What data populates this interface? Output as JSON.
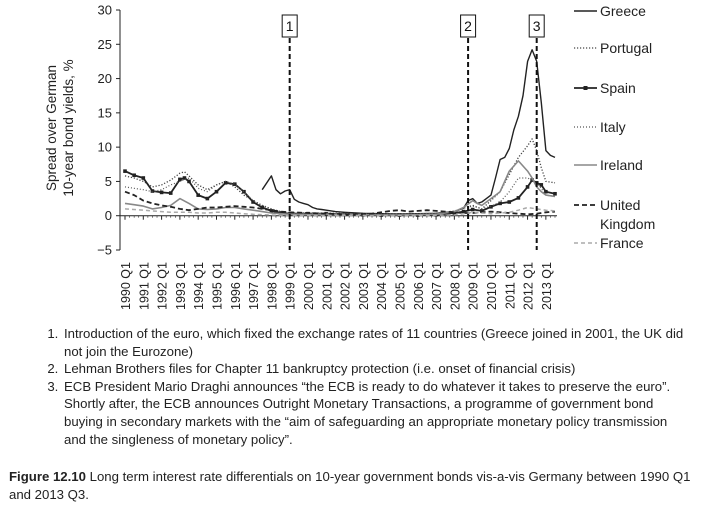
{
  "chart_data": {
    "type": "line",
    "ylabel": "Spread over German\n10-year bond yields, %",
    "ylim": [
      -5,
      30
    ],
    "yticks": [
      30,
      25,
      20,
      15,
      10,
      5,
      0,
      -5
    ],
    "ytick_labels": [
      "30",
      "25",
      "20",
      "15",
      "10",
      "5",
      "0",
      "−5"
    ],
    "xlim": [
      1990.0,
      2013.5
    ],
    "xtick_labels": [
      "1990 Q1",
      "1991 Q1",
      "1992 Q1",
      "1993 Q1",
      "1994 Q1",
      "1995 Q1",
      "1996 Q1",
      "1997 Q1",
      "1998 Q1",
      "1999 Q1",
      "2000 Q1",
      "2001 Q1",
      "2002 Q1",
      "2003 Q1",
      "2004 Q1",
      "2005 Q1",
      "2006 Q1",
      "2007 Q1",
      "2008 Q1",
      "2009 Q1",
      "2010 Q1",
      "2011 Q1",
      "2012 Q1",
      "2013 Q1"
    ],
    "grid": false,
    "legend_position": "right",
    "annotations": [
      {
        "label": "1",
        "x": 1999.0
      },
      {
        "label": "2",
        "x": 2008.75
      },
      {
        "label": "3",
        "x": 2012.5
      }
    ],
    "series": [
      {
        "name": "Greece",
        "color": "#222222",
        "dash": "",
        "width": 1.4,
        "marker": false,
        "x": [
          1997.5,
          1998.0,
          1998.25,
          1998.5,
          1998.75,
          1999.0,
          1999.25,
          1999.5,
          1999.75,
          2000.0,
          2000.25,
          2000.5,
          2000.75,
          2001.0,
          2001.5,
          2002.0,
          2003.0,
          2004.0,
          2005.0,
          2006.0,
          2007.0,
          2008.0,
          2008.5,
          2008.75,
          2009.0,
          2009.25,
          2009.5,
          2009.75,
          2010.0,
          2010.25,
          2010.5,
          2010.75,
          2011.0,
          2011.25,
          2011.5,
          2011.75,
          2012.0,
          2012.25,
          2012.5,
          2012.75,
          2013.0,
          2013.25,
          2013.5
        ],
        "y": [
          3.8,
          5.8,
          3.8,
          3.2,
          3.6,
          3.8,
          2.4,
          2.0,
          1.8,
          1.6,
          1.2,
          1.0,
          0.9,
          0.8,
          0.6,
          0.5,
          0.35,
          0.3,
          0.25,
          0.3,
          0.35,
          0.6,
          1.1,
          2.2,
          2.5,
          1.8,
          2.0,
          2.5,
          3.0,
          5.5,
          8.2,
          8.5,
          9.8,
          12.5,
          14.5,
          17.5,
          22.5,
          24.2,
          22.5,
          16.5,
          9.5,
          8.8,
          8.5
        ]
      },
      {
        "name": "Portugal",
        "color": "#444444",
        "dash": "1.2 1.8",
        "width": 1.3,
        "marker": false,
        "x": [
          1990.0,
          1990.5,
          1991.0,
          1991.5,
          1992.0,
          1992.5,
          1993.0,
          1993.25,
          1993.5,
          1994.0,
          1994.5,
          1995.0,
          1995.5,
          1996.0,
          1996.5,
          1997.0,
          1997.5,
          1998.0,
          1998.5,
          1999.0,
          2000.0,
          2001.0,
          2002.0,
          2003.0,
          2004.0,
          2005.0,
          2006.0,
          2007.0,
          2008.0,
          2008.5,
          2009.0,
          2009.5,
          2010.0,
          2010.5,
          2011.0,
          2011.5,
          2012.0,
          2012.25,
          2012.5,
          2012.75,
          2013.0,
          2013.5
        ],
        "y": [
          5.8,
          5.5,
          5.0,
          4.2,
          4.5,
          5.2,
          6.2,
          6.4,
          5.8,
          4.5,
          3.8,
          4.5,
          5.0,
          4.2,
          3.0,
          2.2,
          1.5,
          1.0,
          0.6,
          0.4,
          0.4,
          0.35,
          0.3,
          0.25,
          0.2,
          0.2,
          0.25,
          0.3,
          0.6,
          1.1,
          1.5,
          1.0,
          2.2,
          3.5,
          6.0,
          8.5,
          10.2,
          11.2,
          9.5,
          7.0,
          5.0,
          4.8
        ]
      },
      {
        "name": "Spain",
        "color": "#222222",
        "dash": "",
        "width": 1.8,
        "marker": true,
        "x": [
          1990.0,
          1990.5,
          1991.0,
          1991.5,
          1992.0,
          1992.5,
          1993.0,
          1993.25,
          1993.5,
          1994.0,
          1994.5,
          1995.0,
          1995.5,
          1996.0,
          1996.5,
          1997.0,
          1997.5,
          1998.0,
          1998.5,
          1999.0,
          2000.0,
          2001.0,
          2002.0,
          2003.0,
          2004.0,
          2005.0,
          2006.0,
          2007.0,
          2008.0,
          2008.5,
          2009.0,
          2009.5,
          2010.0,
          2010.5,
          2011.0,
          2011.5,
          2012.0,
          2012.25,
          2012.5,
          2012.75,
          2013.0,
          2013.5
        ],
        "y": [
          6.5,
          5.9,
          5.5,
          3.6,
          3.4,
          3.3,
          5.3,
          5.5,
          5.0,
          3.0,
          2.5,
          3.5,
          4.8,
          4.6,
          3.5,
          2.0,
          1.2,
          0.7,
          0.4,
          0.3,
          0.3,
          0.3,
          0.2,
          0.15,
          0.1,
          0.1,
          0.1,
          0.15,
          0.4,
          0.6,
          0.9,
          0.7,
          1.3,
          1.8,
          2.0,
          2.6,
          4.2,
          5.2,
          4.8,
          4.5,
          3.5,
          3.2
        ]
      },
      {
        "name": "Italy",
        "color": "#555555",
        "dash": "1 2",
        "width": 1.2,
        "marker": false,
        "x": [
          1990.0,
          1990.5,
          1991.0,
          1991.5,
          1992.0,
          1992.5,
          1993.0,
          1993.5,
          1994.0,
          1994.5,
          1995.0,
          1995.5,
          1996.0,
          1996.5,
          1997.0,
          1997.5,
          1998.0,
          1998.5,
          1999.0,
          2000.0,
          2001.0,
          2002.0,
          2003.0,
          2004.0,
          2005.0,
          2006.0,
          2007.0,
          2008.0,
          2008.5,
          2009.0,
          2009.5,
          2010.0,
          2010.5,
          2011.0,
          2011.5,
          2012.0,
          2012.25,
          2012.5,
          2012.75,
          2013.0,
          2013.5
        ],
        "y": [
          4.2,
          4.0,
          3.8,
          3.5,
          3.8,
          4.5,
          5.0,
          5.5,
          4.0,
          3.5,
          4.5,
          5.0,
          4.6,
          3.5,
          2.2,
          1.5,
          1.0,
          0.6,
          0.4,
          0.4,
          0.4,
          0.35,
          0.3,
          0.25,
          0.25,
          0.3,
          0.35,
          0.7,
          1.1,
          1.4,
          1.0,
          1.4,
          2.0,
          3.5,
          5.5,
          5.5,
          5.2,
          4.8,
          4.0,
          3.0,
          2.8
        ]
      },
      {
        "name": "Ireland",
        "color": "#888888",
        "dash": "",
        "width": 1.6,
        "marker": false,
        "x": [
          1990.0,
          1990.5,
          1991.0,
          1991.5,
          1992.0,
          1992.5,
          1993.0,
          1993.5,
          1994.0,
          1994.5,
          1995.0,
          1995.5,
          1996.0,
          1996.5,
          1997.0,
          1997.5,
          1998.0,
          1998.5,
          1999.0,
          2000.0,
          2001.0,
          2002.0,
          2003.0,
          2004.0,
          2005.0,
          2006.0,
          2007.0,
          2008.0,
          2008.5,
          2009.0,
          2009.25,
          2009.5,
          2010.0,
          2010.5,
          2011.0,
          2011.5,
          2012.0,
          2012.25,
          2012.5,
          2012.75,
          2013.0,
          2013.5
        ],
        "y": [
          1.8,
          1.6,
          1.4,
          1.0,
          1.2,
          1.5,
          2.5,
          1.8,
          1.0,
          0.9,
          1.0,
          1.2,
          1.2,
          1.0,
          0.8,
          0.6,
          0.4,
          0.3,
          0.2,
          0.2,
          0.2,
          0.2,
          0.15,
          0.1,
          0.1,
          0.15,
          0.2,
          0.6,
          1.2,
          2.2,
          1.8,
          1.5,
          2.5,
          3.5,
          6.5,
          8.0,
          6.5,
          5.5,
          4.2,
          3.5,
          3.0,
          2.8
        ]
      },
      {
        "name": "United Kingdom",
        "color": "#222222",
        "dash": "5 3",
        "width": 1.8,
        "marker": false,
        "x": [
          1990.0,
          1990.5,
          1991.0,
          1991.5,
          1992.0,
          1992.5,
          1993.0,
          1993.5,
          1994.0,
          1994.5,
          1995.0,
          1995.5,
          1996.0,
          1996.5,
          1997.0,
          1997.5,
          1998.0,
          1998.5,
          1999.0,
          2000.0,
          2001.0,
          2002.0,
          2003.0,
          2003.5,
          2004.0,
          2004.5,
          2005.0,
          2005.5,
          2006.0,
          2006.5,
          2007.0,
          2007.5,
          2008.0,
          2008.5,
          2009.0,
          2009.5,
          2010.0,
          2010.5,
          2011.0,
          2011.5,
          2012.0,
          2012.5,
          2013.0,
          2013.5
        ],
        "y": [
          3.5,
          3.0,
          2.2,
          1.8,
          1.5,
          1.3,
          1.0,
          0.8,
          1.0,
          1.2,
          1.2,
          1.3,
          1.4,
          1.3,
          1.2,
          1.0,
          0.8,
          0.6,
          0.5,
          0.4,
          0.3,
          0.2,
          0.2,
          0.3,
          0.5,
          0.7,
          0.8,
          0.6,
          0.7,
          0.8,
          0.7,
          0.6,
          0.5,
          0.4,
          0.4,
          0.5,
          0.6,
          0.5,
          0.4,
          0.3,
          0.2,
          0.3,
          0.5,
          0.6
        ]
      },
      {
        "name": "France",
        "color": "#aaaaaa",
        "dash": "4 3",
        "width": 1.5,
        "marker": false,
        "x": [
          1990.0,
          1990.5,
          1991.0,
          1991.5,
          1992.0,
          1992.5,
          1993.0,
          1993.5,
          1994.0,
          1994.5,
          1995.0,
          1995.5,
          1996.0,
          1996.5,
          1997.0,
          1998.0,
          1999.0,
          2000.0,
          2002.0,
          2004.0,
          2006.0,
          2008.0,
          2008.5,
          2009.0,
          2009.5,
          2010.0,
          2010.5,
          2011.0,
          2011.5,
          2012.0,
          2012.5,
          2013.0,
          2013.5
        ],
        "y": [
          1.0,
          0.9,
          0.8,
          0.7,
          0.6,
          0.5,
          0.5,
          0.5,
          0.4,
          0.4,
          0.5,
          0.5,
          0.4,
          0.3,
          0.2,
          0.1,
          0.05,
          0.05,
          0.05,
          0.05,
          0.05,
          0.1,
          0.3,
          0.5,
          0.4,
          0.3,
          0.4,
          0.5,
          0.8,
          1.2,
          1.0,
          0.8,
          0.7
        ]
      }
    ]
  },
  "notes": [
    "Introduction of the euro, which fixed the exchange rates of 11 countries (Greece joined in 2001, the UK did not join the Eurozone)",
    "Lehman Brothers files for Chapter 11 bankruptcy protection (i.e. onset of financial crisis)",
    "ECB President Mario Draghi announces “the ECB is ready to do whatever it takes to preserve the euro”. Shortly after, the ECB announces Outright Monetary Transactions, a programme of government bond buying in secondary markets with the “aim of safeguarding an appropriate monetary policy transmission and the singleness of monetary policy”."
  ],
  "caption": {
    "label": "Figure 12.10",
    "text": "Long term interest rate differentials on 10-year government bonds vis-a-vis Germany between 1990 Q1 and 2013 Q3."
  }
}
